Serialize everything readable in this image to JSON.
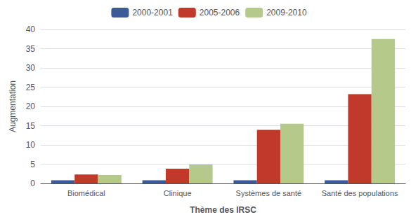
{
  "chart_data": {
    "type": "bar",
    "xlabel": "Thème des IRSC",
    "ylabel": "Augmentation",
    "categories": [
      "Biomédical",
      "Clinique",
      "Systèmes de santé",
      "Santé des populations"
    ],
    "series": [
      {
        "name": "2000-2001",
        "color": "#3a5a9a",
        "values": [
          0.8,
          0.8,
          0.8,
          0.8
        ]
      },
      {
        "name": "2005-2006",
        "color": "#c0392b",
        "values": [
          2.3,
          3.8,
          13.9,
          23.2
        ]
      },
      {
        "name": "2009-2010",
        "color": "#b5c98a",
        "values": [
          2.2,
          4.9,
          15.5,
          37.5
        ]
      }
    ],
    "ylim": [
      0,
      40
    ],
    "yticks": [
      0,
      5,
      10,
      15,
      20,
      25,
      30,
      35,
      40
    ],
    "grid": true,
    "legend": "top"
  }
}
